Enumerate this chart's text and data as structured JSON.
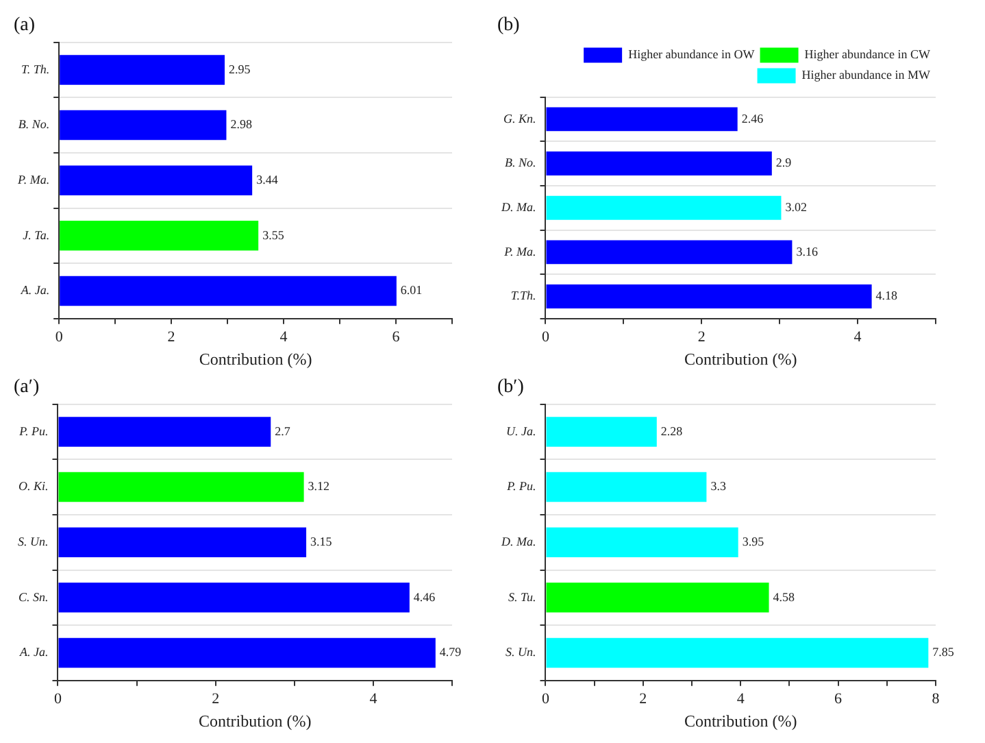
{
  "chart_data": [
    {
      "type": "bar",
      "orientation": "horizontal",
      "title": "(a)",
      "xlabel": "Contribution (%)",
      "categories": [
        "T. Th.",
        "B. No.",
        "P. Ma.",
        "J. Ta.",
        "A. Ja."
      ],
      "values": [
        2.95,
        2.98,
        3.44,
        3.55,
        6.01
      ],
      "colors": [
        "#0000ff",
        "#0000ff",
        "#0000ff",
        "#00ff00",
        "#0000ff"
      ],
      "xlim": [
        0,
        7
      ],
      "xticks": [
        0,
        {
          "value": 1,
          "label": null
        },
        2,
        {
          "value": 3,
          "label": null
        },
        4,
        {
          "value": 5,
          "label": null
        },
        6,
        {
          "value": 7,
          "label": null
        }
      ],
      "data_labels": true,
      "grid": "y"
    },
    {
      "type": "bar",
      "orientation": "horizontal",
      "title": "(b)",
      "xlabel": "Contribution (%)",
      "categories": [
        "G. Kn.",
        "B. No.",
        "D. Ma.",
        "P. Ma.",
        "T.Th."
      ],
      "stacked": true,
      "series": [
        {
          "name": "Higher abundance in OW",
          "color": "#0000ff",
          "values": [
            2.46,
            2.9,
            null,
            3.16,
            4.18
          ]
        },
        {
          "name": "Higher abundance in CW",
          "color": "#00ff00",
          "values": [
            null,
            null,
            null,
            null,
            null
          ]
        },
        {
          "name": "Higher abundance in MW",
          "color": "#00ffff",
          "values": [
            null,
            null,
            3.02,
            null,
            null
          ]
        }
      ],
      "xlim": [
        0,
        5
      ],
      "xticks": [
        0,
        {
          "value": 1,
          "label": null
        },
        2,
        {
          "value": 3,
          "label": null
        },
        4,
        {
          "value": 5,
          "label": null
        }
      ],
      "data_labels": true,
      "grid": "y",
      "legend": "top right"
    },
    {
      "type": "bar",
      "orientation": "horizontal",
      "title": "(a′)",
      "xlabel": "Contribution (%)",
      "categories": [
        "P. Pu.",
        "O. Ki.",
        "S. Un.",
        "C. Sn.",
        "A. Ja."
      ],
      "values": [
        2.7,
        3.12,
        3.15,
        4.46,
        4.79
      ],
      "colors": [
        "#0000ff",
        "#00ff00",
        "#0000ff",
        "#0000ff",
        "#0000ff"
      ],
      "xlim": [
        0,
        5
      ],
      "xticks": [
        0,
        {
          "value": 1,
          "label": null
        },
        2,
        {
          "value": 3,
          "label": null
        },
        4,
        {
          "value": 5,
          "label": null
        }
      ],
      "data_labels": true,
      "grid": "y"
    },
    {
      "type": "bar",
      "orientation": "horizontal",
      "title": "(b′)",
      "xlabel": "Contribution (%)",
      "categories": [
        "U. Ja.",
        "P. Pu.",
        "D. Ma.",
        "S. Tu.",
        "S. Un."
      ],
      "values": [
        2.28,
        3.3,
        3.95,
        4.58,
        7.85
      ],
      "colors": [
        "#00ffff",
        "#00ffff",
        "#00ffff",
        "#00ff00",
        "#00ffff"
      ],
      "xlim": [
        0,
        8
      ],
      "xticks": [
        0,
        {
          "value": 1,
          "label": null
        },
        2,
        {
          "value": 3,
          "label": null
        },
        4,
        {
          "value": 5,
          "label": null
        },
        6,
        {
          "value": 7,
          "label": null
        },
        8
      ],
      "data_labels": true,
      "grid": "y"
    }
  ]
}
